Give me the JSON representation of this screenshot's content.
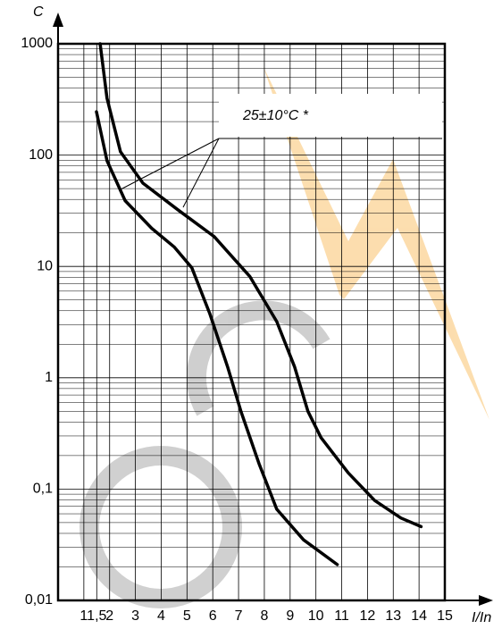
{
  "chart_data": {
    "type": "line",
    "y_label": "C",
    "x_label": "I/In",
    "annotation": "25±10°C *",
    "xlim": [
      0,
      15
    ],
    "ylim": [
      0.01,
      1000
    ],
    "log_y": true,
    "grid": true,
    "xticks": [
      1,
      {
        "value": 1.5,
        "label": "1,5"
      },
      2,
      3,
      4,
      5,
      6,
      7,
      8,
      9,
      10,
      11,
      12,
      13,
      14,
      15
    ],
    "yticks": [
      {
        "value": 0.01,
        "label": "0,01"
      },
      {
        "value": 0.1,
        "label": "0,1"
      },
      1,
      10,
      100,
      1000
    ],
    "series": [
      {
        "color": "#000000",
        "x": [
          1.63,
          1.9,
          2.42,
          3.29,
          4.67,
          6.06,
          7.44,
          8.48,
          9.17,
          9.69,
          10.2,
          11.25,
          12.28,
          13.3,
          14.08
        ],
        "values": [
          1000,
          324,
          107,
          56,
          32,
          18.5,
          8.1,
          3.2,
          1.26,
          0.5,
          0.29,
          0.14,
          0.079,
          0.055,
          0.046
        ]
      },
      {
        "color": "#000000",
        "x": [
          1.49,
          1.9,
          2.6,
          3.63,
          4.5,
          5.19,
          5.88,
          6.57,
          7.09,
          7.79,
          8.48,
          9.52,
          10.83
        ],
        "values": [
          245,
          89,
          39,
          22,
          15,
          9.7,
          3.8,
          1.26,
          0.5,
          0.17,
          0.066,
          0.035,
          0.021
        ]
      }
    ]
  }
}
